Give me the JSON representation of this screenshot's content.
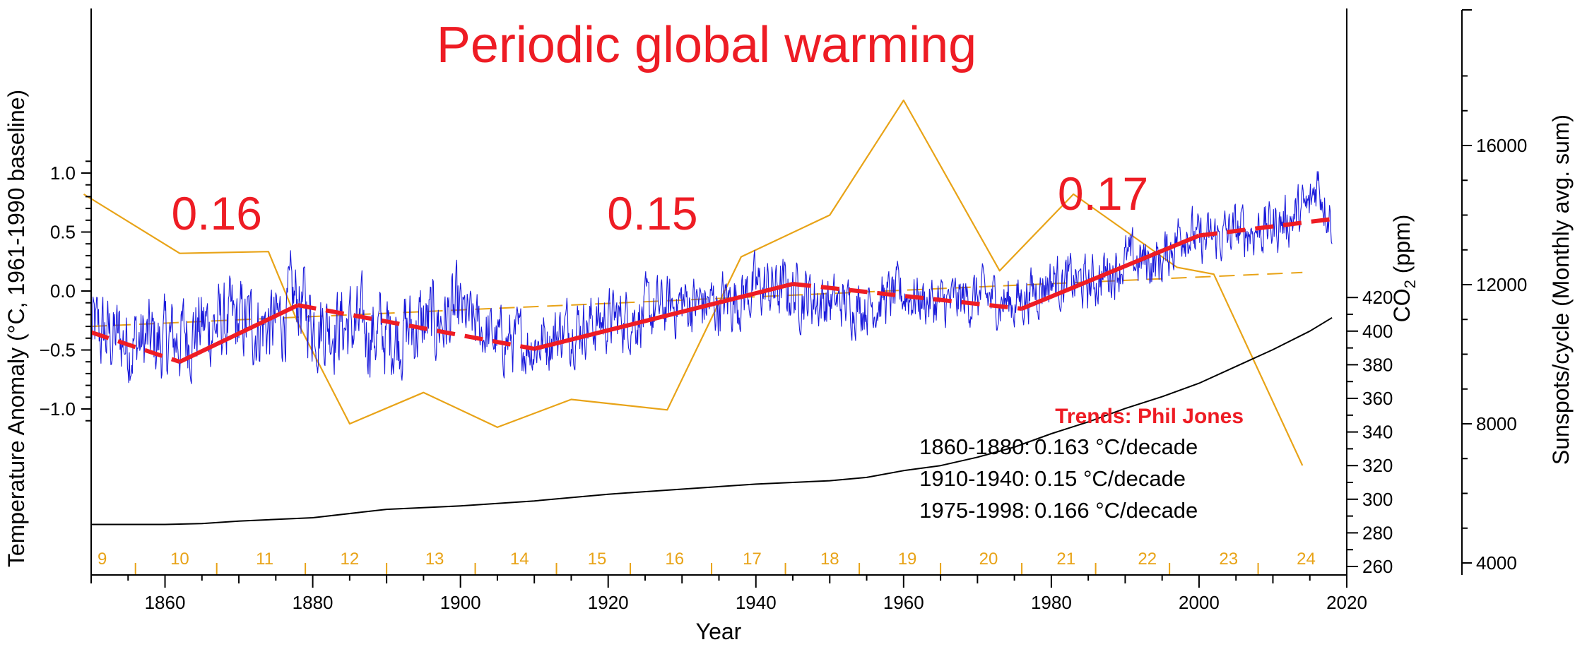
{
  "chart_data": {
    "type": "line",
    "title": "Periodic global warming",
    "xlabel": "Year",
    "ylabel_left": "Temperature Anomaly (°C, 1961-1990 baseline)",
    "ylabel_right1_main": "CO",
    "ylabel_right1_sub": "2",
    "ylabel_right1_unit": " (ppm)",
    "ylabel_right2": "Sunspots/cycle (Monthly avg. sum)",
    "xlim": [
      1850,
      2020
    ],
    "ylim_temp": [
      -1.2,
      1.2
    ],
    "ylim_co2": [
      260,
      420
    ],
    "ylim_sunspots": [
      3500,
      18000
    ],
    "x_ticks": [
      1860,
      1880,
      1900,
      1920,
      1940,
      1960,
      1980,
      2000,
      2020
    ],
    "temp_ticks": [
      {
        "value": -1.0,
        "label": "−1.0"
      },
      {
        "value": -0.5,
        "label": "−0.5"
      },
      {
        "value": 0.0,
        "label": "0.0"
      },
      {
        "value": 0.5,
        "label": "0.5"
      },
      {
        "value": 1.0,
        "label": "1.0"
      }
    ],
    "co2_ticks": [
      260,
      280,
      300,
      320,
      340,
      360,
      380,
      400,
      420
    ],
    "sunspot_ticks": [
      4000,
      8000,
      12000,
      16000
    ],
    "colors": {
      "temperature": "#1a1adb",
      "co2": "#000000",
      "sunspots": "#e8a317",
      "trend": "#ee1c24",
      "title": "#ee1c24",
      "cycles": "#e8a317",
      "axis": "#000000"
    },
    "temperature_monthly_anomaly": {
      "description_start": 1850,
      "seed_points": [
        [
          1850,
          -0.35
        ],
        [
          1855,
          -0.42
        ],
        [
          1860,
          -0.45
        ],
        [
          1865,
          -0.3
        ],
        [
          1870,
          -0.28
        ],
        [
          1875,
          -0.3
        ],
        [
          1878,
          -0.05
        ],
        [
          1880,
          -0.25
        ],
        [
          1885,
          -0.3
        ],
        [
          1890,
          -0.38
        ],
        [
          1895,
          -0.3
        ],
        [
          1900,
          -0.2
        ],
        [
          1905,
          -0.42
        ],
        [
          1910,
          -0.45
        ],
        [
          1915,
          -0.3
        ],
        [
          1920,
          -0.25
        ],
        [
          1925,
          -0.2
        ],
        [
          1930,
          -0.1
        ],
        [
          1935,
          -0.12
        ],
        [
          1940,
          0.02
        ],
        [
          1945,
          0.0
        ],
        [
          1950,
          -0.1
        ],
        [
          1955,
          -0.12
        ],
        [
          1960,
          -0.02
        ],
        [
          1965,
          -0.12
        ],
        [
          1970,
          -0.05
        ],
        [
          1975,
          -0.1
        ],
        [
          1980,
          0.1
        ],
        [
          1985,
          0.05
        ],
        [
          1990,
          0.25
        ],
        [
          1995,
          0.25
        ],
        [
          1998,
          0.55
        ],
        [
          2000,
          0.4
        ],
        [
          2005,
          0.5
        ],
        [
          2010,
          0.55
        ],
        [
          2015,
          0.7
        ],
        [
          2016,
          0.95
        ],
        [
          2018,
          0.6
        ]
      ]
    },
    "co2_ppm": [
      [
        1850,
        285
      ],
      [
        1860,
        285
      ],
      [
        1865,
        285.5
      ],
      [
        1870,
        287
      ],
      [
        1880,
        289
      ],
      [
        1890,
        294
      ],
      [
        1900,
        296
      ],
      [
        1910,
        299
      ],
      [
        1920,
        303
      ],
      [
        1930,
        306
      ],
      [
        1940,
        309
      ],
      [
        1950,
        311
      ],
      [
        1955,
        313
      ],
      [
        1960,
        317
      ],
      [
        1965,
        320
      ],
      [
        1970,
        325
      ],
      [
        1975,
        331
      ],
      [
        1980,
        339
      ],
      [
        1985,
        346
      ],
      [
        1990,
        354
      ],
      [
        1995,
        361
      ],
      [
        2000,
        369
      ],
      [
        2005,
        379
      ],
      [
        2010,
        389
      ],
      [
        2015,
        400
      ],
      [
        2018,
        408
      ]
    ],
    "sunspots_per_cycle": [
      [
        1849,
        14600
      ],
      [
        1862,
        12900
      ],
      [
        1874,
        12950
      ],
      [
        1878,
        10900
      ],
      [
        1885,
        8000
      ],
      [
        1895,
        8900
      ],
      [
        1905,
        7900
      ],
      [
        1915,
        8700
      ],
      [
        1928,
        8400
      ],
      [
        1938,
        12800
      ],
      [
        1950,
        14000
      ],
      [
        1960,
        17300
      ],
      [
        1973,
        12400
      ],
      [
        1983,
        14600
      ],
      [
        1997,
        12500
      ],
      [
        2002,
        12300
      ],
      [
        2014,
        6800
      ]
    ],
    "sunspot_trend": [
      [
        1850,
        10800
      ],
      [
        2014,
        12350
      ]
    ],
    "trend_segments": [
      {
        "x": [
          1850,
          1862
        ],
        "y": [
          -0.35,
          -0.6
        ],
        "style": "dashed"
      },
      {
        "x": [
          1862,
          1878
        ],
        "y": [
          -0.6,
          -0.12
        ],
        "style": "solid"
      },
      {
        "x": [
          1878,
          1910
        ],
        "y": [
          -0.12,
          -0.49
        ],
        "style": "dashed"
      },
      {
        "x": [
          1910,
          1945
        ],
        "y": [
          -0.49,
          0.06
        ],
        "style": "solid"
      },
      {
        "x": [
          1945,
          1976
        ],
        "y": [
          0.06,
          -0.15
        ],
        "style": "dashed"
      },
      {
        "x": [
          1976,
          2000
        ],
        "y": [
          -0.15,
          0.47
        ],
        "style": "solid"
      },
      {
        "x": [
          2000,
          2018
        ],
        "y": [
          0.47,
          0.61
        ],
        "style": "dashed"
      }
    ],
    "annotations": [
      {
        "text": "0.16",
        "x": 1867,
        "y": 0.52
      },
      {
        "text": "0.15",
        "x": 1926,
        "y": 0.52
      },
      {
        "text": "0.17",
        "x": 1987,
        "y": 0.69
      }
    ],
    "cycle_labels": [
      {
        "label": "9",
        "x": 1851.5
      },
      {
        "label": "10",
        "x": 1862
      },
      {
        "label": "11",
        "x": 1873.5
      },
      {
        "label": "12",
        "x": 1885
      },
      {
        "label": "13",
        "x": 1896.5
      },
      {
        "label": "14",
        "x": 1908
      },
      {
        "label": "15",
        "x": 1918.5
      },
      {
        "label": "16",
        "x": 1929
      },
      {
        "label": "17",
        "x": 1939.5
      },
      {
        "label": "18",
        "x": 1950
      },
      {
        "label": "19",
        "x": 1960.5
      },
      {
        "label": "20",
        "x": 1971.5
      },
      {
        "label": "21",
        "x": 1982
      },
      {
        "label": "22",
        "x": 1993
      },
      {
        "label": "23",
        "x": 2004
      },
      {
        "label": "24",
        "x": 2014.5
      }
    ],
    "cycle_boundaries": [
      1856,
      1867,
      1879,
      1890,
      1902,
      1913,
      1923,
      1934,
      1944,
      1954,
      1965,
      1976,
      1986,
      1996,
      2008
    ],
    "trends_box": {
      "heading": "Trends: Phil Jones",
      "rows": [
        {
          "period": "1860-1880:",
          "value": "0.163 °C/decade"
        },
        {
          "period": "1910-1940:",
          "value": "0.15 °C/decade"
        },
        {
          "period": "1975-1998:",
          "value": "0.166 °C/decade"
        }
      ]
    }
  }
}
